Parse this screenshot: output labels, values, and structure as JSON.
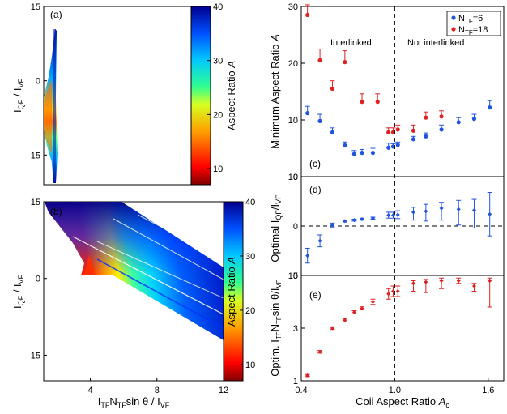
{
  "chart_data": [
    {
      "type": "heatmap",
      "panel_label": "(a)",
      "xlabel": "",
      "ylabel_main": "I",
      "ylabel_sub": "QF",
      "ylabel_mid": " / I",
      "ylabel_sub2": "VF",
      "xlim": [
        1.5,
        2.9
      ],
      "ylim": [
        -21,
        15
      ],
      "xticks": [],
      "yticks": [
        15,
        0,
        -15
      ],
      "yticks_labels": [
        "15",
        "0",
        "-15"
      ],
      "colorbar": {
        "label": "Aspect Ratio",
        "label_var": "A",
        "range": [
          7,
          40
        ],
        "ticks": [
          10,
          20,
          30,
          40
        ]
      },
      "region": [
        {
          "y": 10,
          "x_lo": 2.45,
          "x_hi": 2.55,
          "a": 38
        },
        {
          "y": 5,
          "x_lo": 2.2,
          "x_hi": 2.6,
          "a": 36
        },
        {
          "y": 0,
          "x_lo": 1.95,
          "x_hi": 2.62,
          "a": 30
        },
        {
          "y": -5,
          "x_lo": 1.75,
          "x_hi": 2.65,
          "a": 10
        },
        {
          "y": -10,
          "x_lo": 1.8,
          "x_hi": 2.68,
          "a": 18
        },
        {
          "y": -15,
          "x_lo": 2.0,
          "x_hi": 2.72,
          "a": 34
        },
        {
          "y": -20,
          "x_lo": 2.4,
          "x_hi": 2.75,
          "a": 40
        }
      ]
    },
    {
      "type": "heatmap",
      "panel_label": "(b)",
      "xlabel_parts": [
        "I",
        "TF",
        "N",
        "TF",
        "sin θ / I",
        "VF"
      ],
      "ylabel_main": "I",
      "ylabel_sub": "QF",
      "ylabel_mid": " / I",
      "ylabel_sub2": "VF",
      "xlim": [
        1.2,
        12
      ],
      "ylim": [
        -20,
        15
      ],
      "xticks": [
        4,
        8,
        12
      ],
      "yticks": [
        15,
        0,
        -15
      ],
      "yticks_labels": [
        "15",
        "0",
        "-15"
      ],
      "colorbar": {
        "label": "Aspect Ratio",
        "label_var": "A",
        "range": [
          7,
          40
        ],
        "ticks": [
          10,
          20,
          30,
          40
        ]
      },
      "cusp": {
        "x": 4.4,
        "y": 1.0
      }
    },
    {
      "type": "scatter",
      "panel_label": "(c)",
      "ylabel": "Minimum Aspect Ratio",
      "ylabel_var": "A",
      "xlim": [
        0.4,
        1.7
      ],
      "ylim": [
        0,
        30
      ],
      "yticks": [
        0,
        10,
        20,
        30
      ],
      "divider_x": 1.0,
      "annotations": [
        "Interlinked",
        "Not interlinked"
      ],
      "series": [
        {
          "name_main": "N",
          "name_sub": "TF",
          "name_rest": "=6",
          "color": "#2255dd",
          "x": [
            0.44,
            0.52,
            0.6,
            0.68,
            0.74,
            0.79,
            0.86,
            0.96,
            0.99,
            1.02,
            1.12,
            1.2,
            1.3,
            1.41,
            1.51,
            1.61
          ],
          "y": [
            11.2,
            9.8,
            7.8,
            5.5,
            4.0,
            4.2,
            4.2,
            5.1,
            5.3,
            5.6,
            6.6,
            7.1,
            8.3,
            9.6,
            10.2,
            12.2
          ],
          "err": [
            1.2,
            1.2,
            0.8,
            0.6,
            0.6,
            0.6,
            0.8,
            0.8,
            0.5,
            0.5,
            0.5,
            0.6,
            0.8,
            0.8,
            0.8,
            1.2
          ]
        },
        {
          "name_main": "N",
          "name_sub": "TF",
          "name_rest": "=18",
          "color": "#dd2222",
          "x": [
            0.44,
            0.52,
            0.6,
            0.68,
            0.79,
            0.89,
            0.96,
            0.99,
            1.02,
            1.12,
            1.2,
            1.3
          ],
          "y": [
            28.5,
            20.5,
            15.5,
            20.2,
            13.2,
            13.2,
            7.8,
            7.8,
            8.3,
            8.1,
            10.4,
            10.6
          ],
          "err": [
            1.8,
            2.0,
            1.4,
            2.0,
            1.4,
            1.4,
            0.8,
            0.8,
            0.8,
            1.0,
            1.0,
            1.0
          ]
        }
      ]
    },
    {
      "type": "scatter",
      "panel_label": "(d)",
      "ylabel_main": "Optimal  I",
      "ylabel_sub": "QF",
      "ylabel_mid": "/I",
      "ylabel_sub2": "VF",
      "xlim": [
        0.4,
        1.7
      ],
      "ylim": [
        -10,
        10
      ],
      "yticks": [
        10,
        0,
        -10
      ],
      "yticks_labels": [
        "10",
        "0",
        "10"
      ],
      "divider_x": 1.0,
      "zero_line": true,
      "series": [
        {
          "color": "#2255dd",
          "x": [
            0.44,
            0.52,
            0.6,
            0.68,
            0.74,
            0.79,
            0.86,
            0.96,
            0.99,
            1.02,
            1.12,
            1.2,
            1.3,
            1.41,
            1.51,
            1.61
          ],
          "y": [
            -6.0,
            -3.0,
            0.2,
            1.0,
            1.2,
            1.4,
            1.6,
            2.2,
            2.2,
            2.3,
            2.8,
            3.0,
            3.6,
            3.4,
            3.2,
            2.4
          ],
          "err_lo": [
            1.5,
            1.2,
            0.4,
            0.2,
            0.2,
            0.2,
            0.2,
            0.6,
            0.6,
            0.8,
            1.6,
            2.0,
            2.4,
            3.2,
            3.6,
            4.4
          ],
          "err_hi": [
            1.5,
            1.2,
            0.4,
            0.2,
            0.2,
            0.2,
            0.2,
            0.6,
            0.6,
            0.8,
            1.0,
            1.4,
            1.2,
            1.8,
            2.2,
            4.4
          ]
        }
      ]
    },
    {
      "type": "scatter",
      "panel_label": "(e)",
      "ylabel_parts": [
        "Optim. I",
        "TF",
        "N",
        "TF",
        "sin θ/I",
        "VF"
      ],
      "xlabel": "Coil Aspect Ratio",
      "xlabel_var": "A",
      "xlabel_sub": "c",
      "xlim": [
        0.4,
        1.7
      ],
      "ylim": [
        1,
        5
      ],
      "xticks": [
        0.4,
        1.0,
        1.6
      ],
      "xticks_labels": [
        "0.4",
        "1.0",
        "1.6"
      ],
      "yticks": [
        1,
        3,
        5
      ],
      "divider_x": 1.0,
      "series": [
        {
          "color": "#dd2222",
          "x": [
            0.44,
            0.52,
            0.6,
            0.68,
            0.74,
            0.79,
            0.86,
            0.96,
            0.99,
            1.02,
            1.12,
            1.2,
            1.3,
            1.41,
            1.51,
            1.61
          ],
          "y": [
            1.2,
            2.1,
            3.0,
            3.3,
            3.6,
            3.75,
            4.0,
            4.3,
            4.4,
            4.4,
            4.7,
            4.75,
            4.8,
            4.8,
            4.6,
            4.8
          ],
          "err_lo": [
            0.04,
            0.05,
            0.05,
            0.06,
            0.06,
            0.06,
            0.1,
            0.2,
            0.2,
            0.2,
            0.3,
            0.4,
            0.3,
            0.1,
            0.2,
            1.0
          ],
          "err_hi": [
            0.04,
            0.05,
            0.05,
            0.06,
            0.06,
            0.06,
            0.1,
            0.2,
            0.2,
            0.2,
            0.1,
            0.1,
            0.1,
            0.1,
            0.1,
            0.1
          ]
        }
      ]
    }
  ]
}
